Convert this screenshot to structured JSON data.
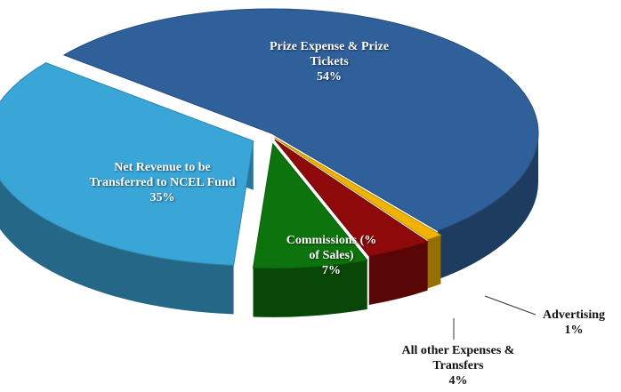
{
  "chart_data": {
    "type": "pie",
    "categories": [
      "Prize Expense & Prize Tickets",
      "Advertising",
      "All other Expenses & Transfers",
      "Commissions (% of Sales)",
      "Net Revenue to be Transferred to NCEL Fund"
    ],
    "values": [
      54,
      1,
      4,
      7,
      35
    ],
    "value_labels": [
      "54%",
      "1%",
      "4%",
      "7%",
      "35%"
    ],
    "colors": [
      "#30609a",
      "#f0b400",
      "#8e0a0a",
      "#0d730d",
      "#3aa6d8"
    ]
  }
}
